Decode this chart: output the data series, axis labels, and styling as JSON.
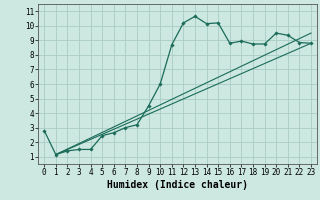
{
  "title": "",
  "xlabel": "Humidex (Indice chaleur)",
  "ylabel": "",
  "bg_color": "#cce8e0",
  "grid_color": "#aaccc4",
  "line_color": "#1a6b5a",
  "xlim": [
    -0.5,
    23.5
  ],
  "ylim": [
    0.5,
    11.5
  ],
  "xticks": [
    0,
    1,
    2,
    3,
    4,
    5,
    6,
    7,
    8,
    9,
    10,
    11,
    12,
    13,
    14,
    15,
    16,
    17,
    18,
    19,
    20,
    21,
    22,
    23
  ],
  "yticks": [
    1,
    2,
    3,
    4,
    5,
    6,
    7,
    8,
    9,
    10,
    11
  ],
  "curve_x": [
    0,
    1,
    2,
    3,
    4,
    5,
    6,
    7,
    8,
    9,
    10,
    11,
    12,
    13,
    14,
    15,
    16,
    17,
    18,
    19,
    20,
    21,
    22,
    23
  ],
  "curve_y": [
    2.8,
    1.15,
    1.4,
    1.5,
    1.5,
    2.45,
    2.65,
    3.0,
    3.2,
    4.5,
    6.0,
    8.7,
    10.2,
    10.65,
    10.15,
    10.2,
    8.8,
    8.95,
    8.75,
    8.75,
    9.5,
    9.35,
    8.85,
    8.8
  ],
  "line1_x": [
    1,
    23
  ],
  "line1_y": [
    1.15,
    8.8
  ],
  "line2_x": [
    1,
    23
  ],
  "line2_y": [
    1.15,
    9.5
  ],
  "xlabel_fontsize": 7,
  "tick_fontsize": 5.5
}
